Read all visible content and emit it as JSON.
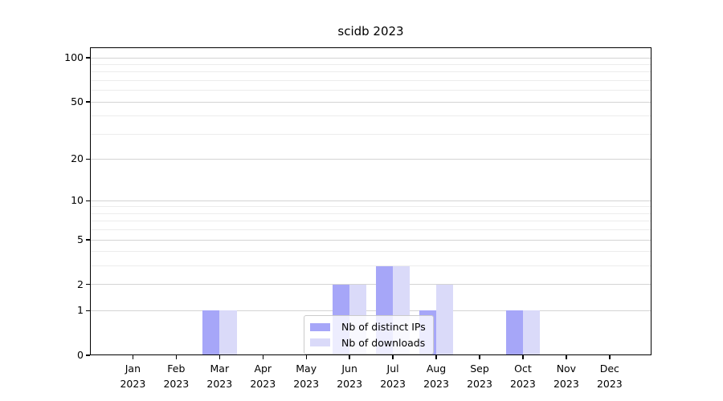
{
  "chart_data": {
    "type": "bar",
    "title": "scidb 2023",
    "x": {
      "months": [
        "Jan",
        "Feb",
        "Mar",
        "Apr",
        "May",
        "Jun",
        "Jul",
        "Aug",
        "Sep",
        "Oct",
        "Nov",
        "Dec"
      ],
      "year": "2023"
    },
    "series": [
      {
        "name": "Nb of distinct IPs",
        "color": "#a6a6f8",
        "values": [
          0,
          0,
          1,
          0,
          0,
          2,
          3,
          1,
          0,
          1,
          0,
          0
        ]
      },
      {
        "name": "Nb of downloads",
        "color": "#dadaf9",
        "values": [
          0,
          0,
          1,
          0,
          0,
          2,
          3,
          2,
          0,
          1,
          0,
          0
        ]
      }
    ],
    "yscale": "log1p",
    "ylim": [
      0,
      117
    ],
    "y_major_ticks": [
      0,
      1,
      2,
      5,
      10,
      20,
      50,
      100
    ],
    "y_minor_gridlines": [
      3,
      4,
      6,
      7,
      8,
      9,
      30,
      40,
      60,
      70,
      80,
      90
    ],
    "grid": true,
    "legend": {
      "location": "lower center",
      "entries": [
        "Nb of distinct IPs",
        "Nb of downloads"
      ]
    }
  },
  "colors": {
    "background": "#ffffff",
    "axis": "#000000",
    "grid_major": "#d4d4d4",
    "grid_minor": "#ececec",
    "legend_border": "#cbcbcb",
    "bar_ips": "#a6a6f8",
    "bar_downloads": "#dadaf9"
  }
}
